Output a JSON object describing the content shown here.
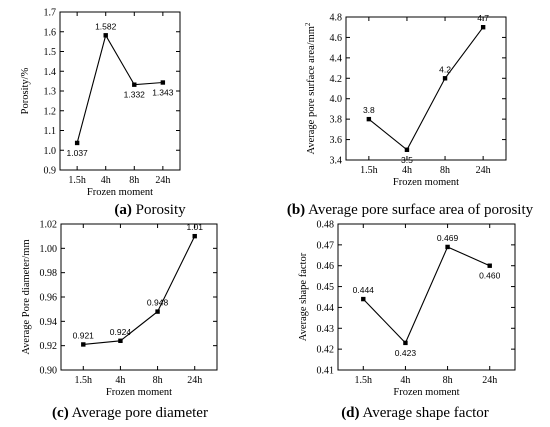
{
  "chart_data": [
    {
      "type": "line",
      "panel_letter": "(a)",
      "caption": "Porosity",
      "categories": [
        "1.5h",
        "4h",
        "8h",
        "24h"
      ],
      "values": [
        1.037,
        1.582,
        1.332,
        1.343
      ],
      "data_labels": [
        "1.037",
        "1.582",
        "1.332",
        "1.343"
      ],
      "xlabel": "Frozen moment",
      "ylabel": "Porosity/%",
      "ylim": [
        0.9,
        1.7
      ],
      "yticks": [
        "0.9",
        "1.0",
        "1.1",
        "1.2",
        "1.3",
        "1.4",
        "1.5",
        "1.6",
        "1.7"
      ],
      "label_side": [
        "below",
        "above",
        "below",
        "below"
      ]
    },
    {
      "type": "line",
      "panel_letter": "(b)",
      "caption": "Average pore surface area of porosity",
      "categories": [
        "1.5h",
        "4h",
        "8h",
        "24h"
      ],
      "values": [
        3.8,
        3.5,
        4.2,
        4.7
      ],
      "data_labels": [
        "3.8",
        "3.5",
        "4.2",
        "4.7"
      ],
      "xlabel": "Frozen moment",
      "ylabel": "Average pore surface area/mm",
      "ylabel_superscript": "2",
      "ylim": [
        3.4,
        4.8
      ],
      "yticks": [
        "3.4",
        "3.6",
        "3.8",
        "4.0",
        "4.2",
        "4.4",
        "4.6",
        "4.8"
      ],
      "label_side": [
        "above",
        "below",
        "above",
        "above"
      ]
    },
    {
      "type": "line",
      "panel_letter": "(c)",
      "caption": "Average pore diameter",
      "categories": [
        "1.5h",
        "4h",
        "8h",
        "24h"
      ],
      "values": [
        0.921,
        0.924,
        0.948,
        1.01
      ],
      "data_labels": [
        "0.921",
        "0.924",
        "0.948",
        "1.01"
      ],
      "xlabel": "Frozen moment",
      "ylabel": "Average Pore diameter/mm",
      "ylim": [
        0.9,
        1.02
      ],
      "yticks": [
        "0.90",
        "0.92",
        "0.94",
        "0.96",
        "0.98",
        "1.00",
        "1.02"
      ],
      "label_side": [
        "above",
        "above",
        "above",
        "above"
      ]
    },
    {
      "type": "line",
      "panel_letter": "(d)",
      "caption": "Average shape factor",
      "categories": [
        "1.5h",
        "4h",
        "8h",
        "24h"
      ],
      "values": [
        0.444,
        0.423,
        0.469,
        0.46
      ],
      "data_labels": [
        "0.444",
        "0.423",
        "0.469",
        "0.460"
      ],
      "xlabel": "Frozen moment",
      "ylabel": "Average shape factor",
      "ylim": [
        0.41,
        0.48
      ],
      "yticks": [
        "0.41",
        "0.42",
        "0.43",
        "0.44",
        "0.45",
        "0.46",
        "0.47",
        "0.48"
      ],
      "label_side": [
        "above",
        "below",
        "above",
        "below"
      ]
    }
  ]
}
